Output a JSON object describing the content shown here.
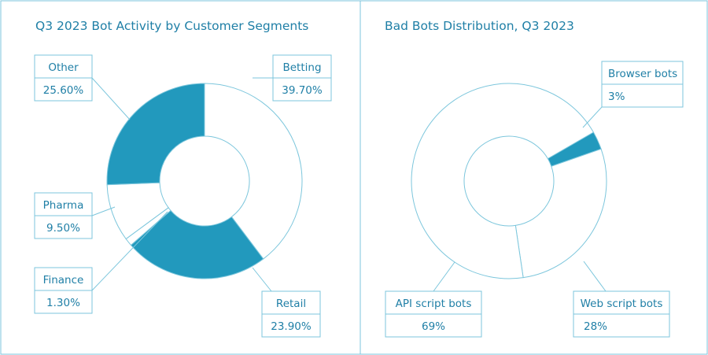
{
  "colors": {
    "accent": "#2299bd",
    "line": "#7cc6dc",
    "text": "#1f7fa6",
    "background": "#ffffff"
  },
  "chart_data": [
    {
      "type": "pie",
      "title": "Q3 2023 Bot Activity by Customer Segments",
      "slices": [
        {
          "label": "Betting",
          "value_text": "39.70%",
          "value": 39.7,
          "filled": false
        },
        {
          "label": "Retail",
          "value_text": "23.90%",
          "value": 23.9,
          "filled": true
        },
        {
          "label": "Finance",
          "value_text": "1.30%",
          "value": 1.3,
          "filled": false
        },
        {
          "label": "Pharma",
          "value_text": "9.50%",
          "value": 9.5,
          "filled": false
        },
        {
          "label": "Other",
          "value_text": "25.60%",
          "value": 25.6,
          "filled": true
        }
      ]
    },
    {
      "type": "pie",
      "title": "Bad Bots Distribution, Q3 2023",
      "slices": [
        {
          "label": "Browser bots",
          "value_text": "3%",
          "value": 3,
          "filled": true
        },
        {
          "label": "Web script bots",
          "value_text": "28%",
          "value": 28,
          "filled": false
        },
        {
          "label": "API script bots",
          "value_text": "69%",
          "value": 69,
          "filled": false
        }
      ]
    }
  ]
}
